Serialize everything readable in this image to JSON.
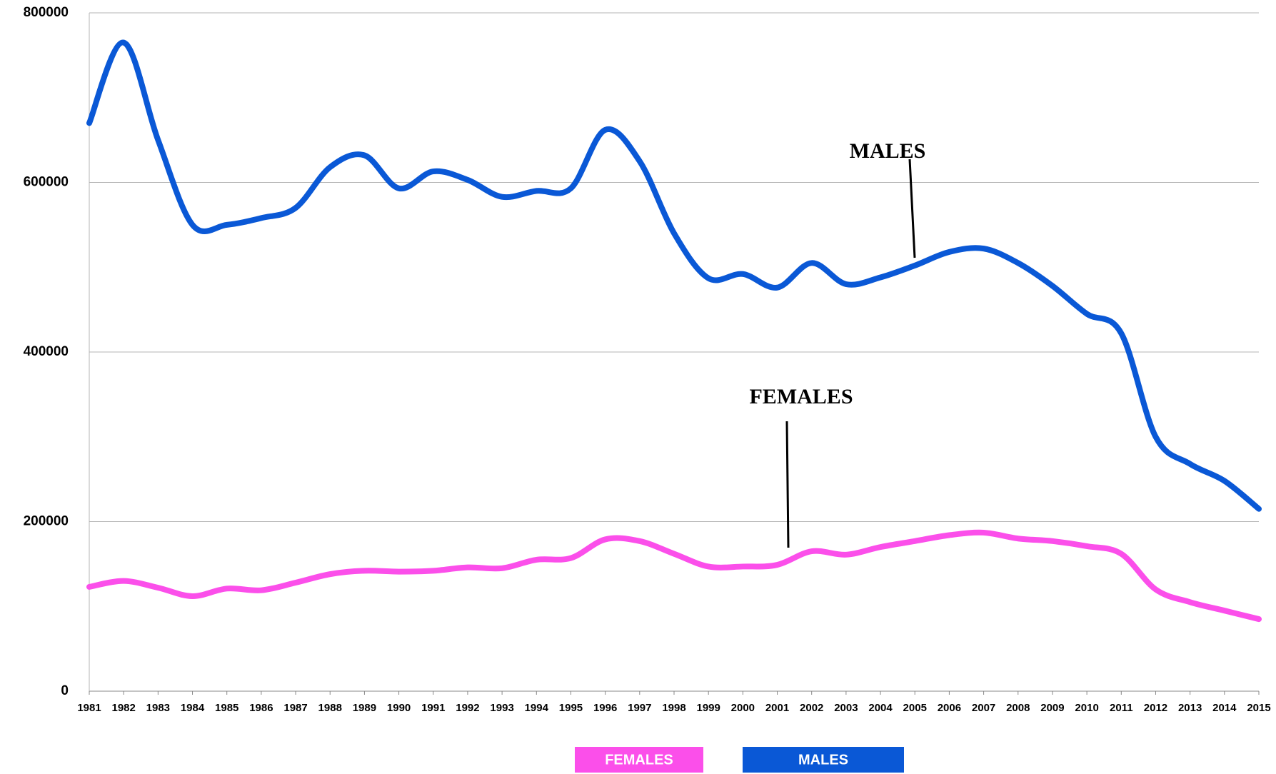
{
  "chart_data": {
    "type": "line",
    "x": [
      1981,
      1982,
      1983,
      1984,
      1985,
      1986,
      1987,
      1988,
      1989,
      1990,
      1991,
      1992,
      1993,
      1994,
      1995,
      1996,
      1997,
      1998,
      1999,
      2000,
      2001,
      2002,
      2003,
      2004,
      2005,
      2006,
      2007,
      2008,
      2009,
      2010,
      2011,
      2012,
      2013,
      2014,
      2015
    ],
    "xlim": [
      1981,
      2015
    ],
    "ylim": [
      0,
      800000
    ],
    "yticks": [
      0,
      200000,
      400000,
      600000,
      800000
    ],
    "grid": true,
    "series": [
      {
        "name": "FEMALES",
        "color": "#fb4fea",
        "values": [
          123000,
          130000,
          122000,
          112000,
          121000,
          119000,
          128000,
          138000,
          142000,
          141000,
          142000,
          146000,
          145000,
          155000,
          157000,
          179000,
          177000,
          162000,
          147000,
          147000,
          149000,
          165000,
          161000,
          170000,
          177000,
          184000,
          187000,
          180000,
          177000,
          171000,
          162000,
          120000,
          105000,
          95000,
          85000
        ]
      },
      {
        "name": "MALES",
        "color": "#0a58d6",
        "values": [
          670000,
          765000,
          650000,
          550000,
          550000,
          558000,
          570000,
          618000,
          632000,
          593000,
          613000,
          603000,
          583000,
          590000,
          593000,
          662000,
          625000,
          540000,
          487000,
          492000,
          476000,
          505000,
          480000,
          488000,
          502000,
          518000,
          522000,
          505000,
          478000,
          445000,
          422000,
          300000,
          268000,
          248000,
          215000
        ]
      }
    ],
    "annotations": [
      {
        "text": "MALES"
      },
      {
        "text": "FEMALES"
      }
    ]
  }
}
